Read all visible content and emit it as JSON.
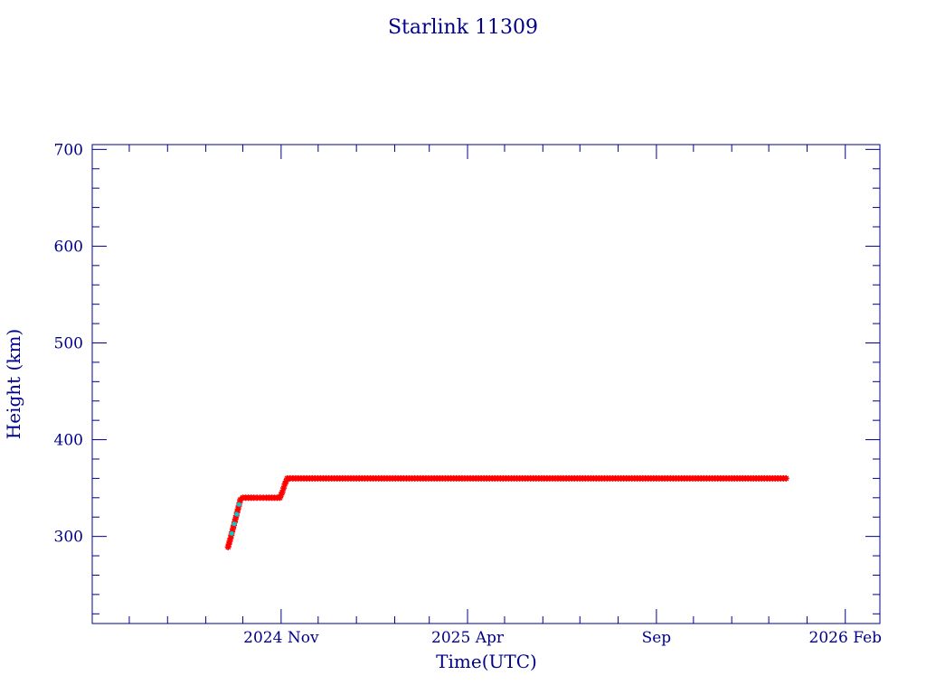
{
  "chart_data": {
    "type": "scatter",
    "title": "Starlink 11309",
    "xlabel": "Time(UTC)",
    "ylabel": "Height (km)",
    "x_ticks": [
      {
        "date": "2024-11-01",
        "label": "2024 Nov"
      },
      {
        "date": "2025-04-01",
        "label": "2025 Apr"
      },
      {
        "date": "2025-09-01",
        "label": "Sep"
      },
      {
        "date": "2026-02-01",
        "label": "2026 Feb"
      }
    ],
    "xlim": [
      "2024-06-01",
      "2026-03-01"
    ],
    "ylim": [
      210,
      705
    ],
    "y_ticks": [
      300,
      400,
      500,
      600,
      700
    ],
    "grid": false,
    "colors": {
      "axes": "#00008b",
      "series_main": "#ff0000",
      "series_secondary": "#00cccc"
    },
    "series": [
      {
        "color": "#ff0000",
        "points": [
          [
            "2024-09-19",
            289
          ],
          [
            "2024-09-21",
            298
          ],
          [
            "2024-09-23",
            308
          ],
          [
            "2024-09-25",
            318
          ],
          [
            "2024-09-27",
            328
          ],
          [
            "2024-09-29",
            338
          ],
          [
            "2024-10-01",
            340
          ],
          [
            "2024-10-10",
            340
          ],
          [
            "2024-10-20",
            340
          ],
          [
            "2024-10-31",
            340
          ],
          [
            "2024-11-02",
            346
          ],
          [
            "2024-11-04",
            354
          ],
          [
            "2024-11-06",
            360
          ],
          [
            "2025-01-01",
            360
          ],
          [
            "2025-04-01",
            360
          ],
          [
            "2025-07-01",
            360
          ],
          [
            "2025-09-01",
            360
          ],
          [
            "2025-11-01",
            360
          ],
          [
            "2025-12-15",
            360
          ]
        ]
      },
      {
        "color": "#00cccc",
        "points": [
          [
            "2024-09-22",
            303
          ],
          [
            "2024-09-24",
            313
          ],
          [
            "2024-09-26",
            323
          ],
          [
            "2024-09-28",
            333
          ]
        ]
      }
    ]
  }
}
